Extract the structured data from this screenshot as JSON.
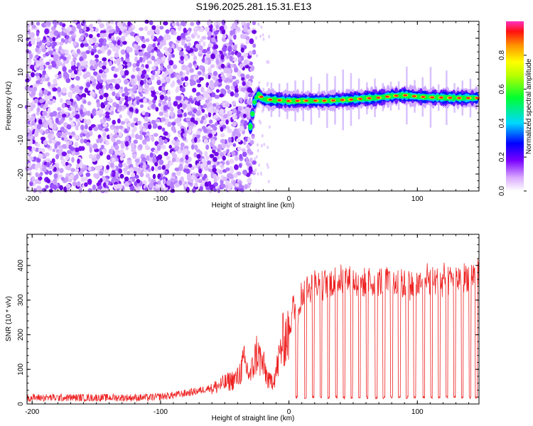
{
  "chart_data": [
    {
      "type": "heatmap",
      "title": "S196.2025.281.15.31.E13",
      "xlabel": "Height of straight line (km)",
      "ylabel": "Frequency (Hz)",
      "xlim": [
        -204,
        148
      ],
      "ylim": [
        -25,
        25
      ],
      "xticks": [
        "-200",
        "-100",
        "0",
        "100"
      ],
      "yticks": [
        "-20",
        "-10",
        "0",
        "10",
        "20"
      ],
      "noise_region_x": [
        -204,
        -27
      ],
      "band": [
        {
          "x": -30,
          "y": -6.0
        },
        {
          "x": -27,
          "y": 1.0
        },
        {
          "x": -24,
          "y": 3.5
        },
        {
          "x": -20,
          "y": 2.0
        },
        {
          "x": -10,
          "y": 1.8
        },
        {
          "x": 0,
          "y": 1.5
        },
        {
          "x": 10,
          "y": 1.6
        },
        {
          "x": 20,
          "y": 1.6
        },
        {
          "x": 30,
          "y": 1.6
        },
        {
          "x": 40,
          "y": 1.8
        },
        {
          "x": 50,
          "y": 2.0
        },
        {
          "x": 60,
          "y": 2.3
        },
        {
          "x": 70,
          "y": 2.5
        },
        {
          "x": 80,
          "y": 3.0
        },
        {
          "x": 90,
          "y": 3.2
        },
        {
          "x": 100,
          "y": 2.8
        },
        {
          "x": 110,
          "y": 2.6
        },
        {
          "x": 120,
          "y": 2.5
        },
        {
          "x": 130,
          "y": 2.4
        },
        {
          "x": 148,
          "y": 2.4
        }
      ],
      "colorbar": {
        "label": "Normalized spectral amplitude",
        "ticks": [
          "0.0",
          "0.2",
          "0.4",
          "0.6",
          "0.8"
        ],
        "range": [
          0,
          1
        ]
      }
    },
    {
      "type": "line",
      "xlabel": "Height of straight line (km)",
      "ylabel": "SNR (10 * v/v)",
      "xlim": [
        -204,
        148
      ],
      "ylim": [
        0,
        490
      ],
      "xticks": [
        "-200",
        "-100",
        "0",
        "100"
      ],
      "yticks": [
        "0",
        "100",
        "200",
        "300",
        "400"
      ],
      "series": [
        {
          "name": "SNR",
          "color": "#ee2222",
          "x": [
            -204,
            -190,
            -170,
            -150,
            -130,
            -110,
            -100,
            -90,
            -80,
            -70,
            -60,
            -50,
            -40,
            -35,
            -30,
            -25,
            -20,
            -15,
            -10,
            -5,
            0,
            3,
            6,
            10,
            15,
            20,
            25,
            30,
            40,
            50,
            60,
            70,
            80,
            90,
            100,
            110,
            120,
            130,
            140,
            148
          ],
          "values": [
            15,
            15,
            15,
            15,
            15,
            15,
            18,
            22,
            28,
            35,
            45,
            60,
            75,
            120,
            80,
            150,
            110,
            60,
            90,
            180,
            210,
            280,
            260,
            320,
            330,
            350,
            340,
            350,
            360,
            355,
            350,
            355,
            350,
            345,
            340,
            355,
            350,
            360,
            370,
            375
          ]
        }
      ],
      "dropouts_x": [
        6,
        13,
        19,
        25,
        31,
        37,
        43,
        49,
        55,
        61,
        68,
        74,
        80,
        86,
        92,
        98,
        105,
        111,
        117,
        123,
        129,
        135,
        141,
        146
      ],
      "dropout_level": 15
    }
  ]
}
